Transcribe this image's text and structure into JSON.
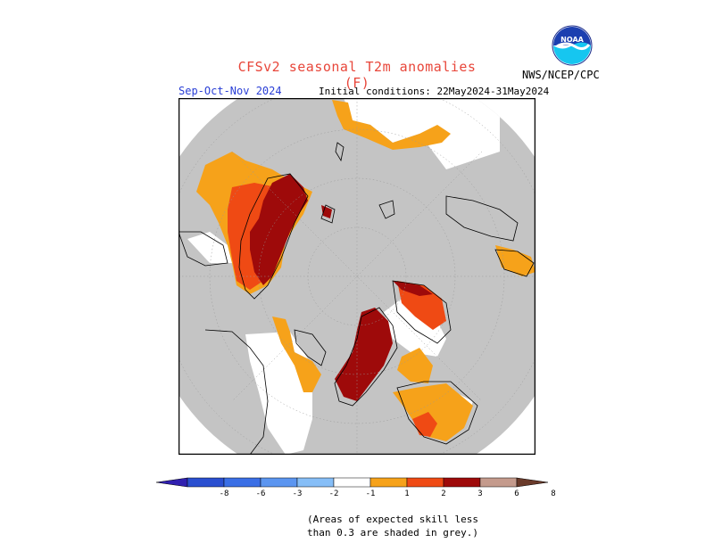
{
  "header": {
    "title": "CFSv2 seasonal T2m anomalies (F)",
    "season": "Sep-Oct-Nov 2024",
    "initial_conditions": "Initial conditions: 22May2024-31May2024",
    "agency": "NWS/NCEP/CPC",
    "logo_text": "NOAA"
  },
  "legend": {
    "ticks": [
      "-8",
      "-6",
      "-3",
      "-2",
      "-1",
      "1",
      "2",
      "3",
      "6",
      "8"
    ],
    "colors": [
      "#3020b0",
      "#2a4fd0",
      "#3a6fe6",
      "#5b95f0",
      "#86bef7",
      "#ffffff",
      "#f6a21a",
      "#ef4a14",
      "#9e0a0a",
      "#c49a8c",
      "#6a3a2a"
    ],
    "note": "(Areas of expected skill less than 0.3 are shaded in grey.)"
  },
  "map": {
    "projection": "north-polar-stereographic",
    "background": "#c4c4c4",
    "unshaded": "#ffffff",
    "anomaly_colors": {
      "1-2": "#f6a21a",
      "2-3": "#ef4a14",
      "3-6": "#9e0a0a"
    }
  }
}
